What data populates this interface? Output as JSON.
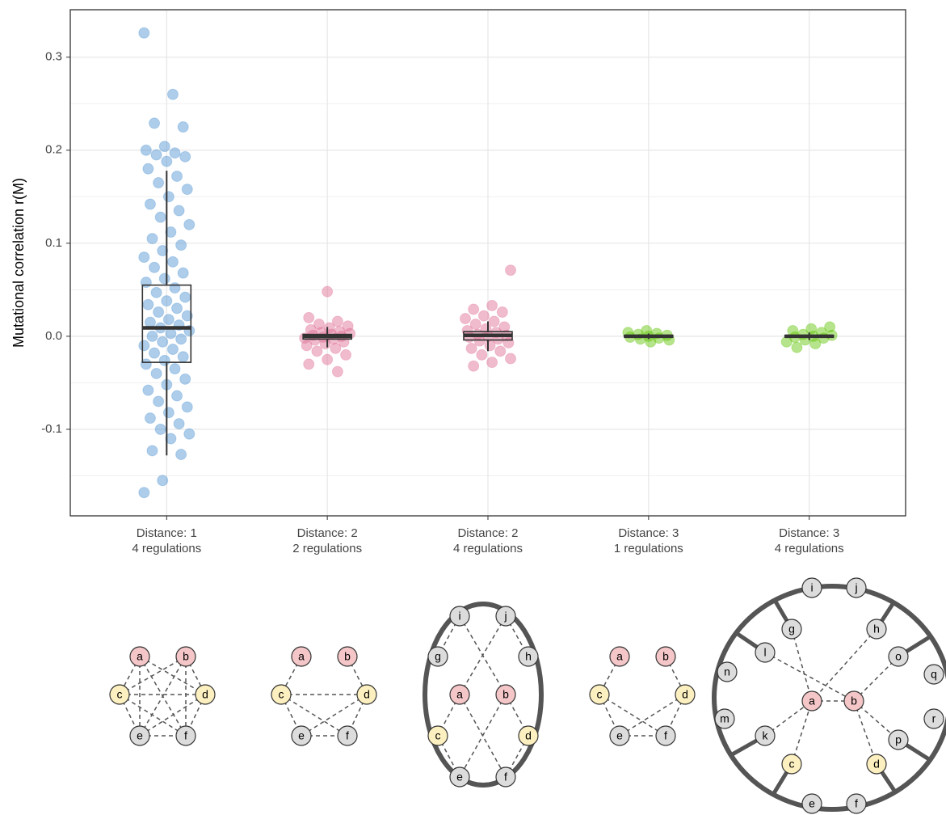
{
  "chart_data": {
    "type": "box",
    "ylabel": "Mutational correlation r(M)",
    "ylim": [
      -0.193,
      0.351
    ],
    "yticks": [
      {
        "value": -0.1,
        "label": "-0.1"
      },
      {
        "value": 0,
        "label": "0.0"
      },
      0.1,
      0.2,
      0.3
    ],
    "grid": true,
    "categories": [
      [
        "Distance: 1",
        "4 regulations"
      ],
      [
        "Distance: 2",
        "2 regulations"
      ],
      [
        "Distance: 2",
        "4 regulations"
      ],
      [
        "Distance: 3",
        "1 regulations"
      ],
      [
        "Distance: 3",
        "4 regulations"
      ]
    ],
    "groups": [
      {
        "color": "#4a90d0",
        "whislo": -0.128,
        "q1": -0.028,
        "med": 0.009,
        "q3": 0.055,
        "whishi": 0.178,
        "points": [
          0.326,
          0.26,
          0.229,
          0.225,
          0.204,
          0.2,
          0.197,
          0.195,
          0.193,
          0.188,
          0.18,
          0.172,
          0.165,
          0.158,
          0.15,
          0.142,
          0.135,
          0.128,
          0.12,
          0.112,
          0.105,
          0.098,
          0.092,
          0.085,
          0.08,
          0.074,
          0.068,
          0.062,
          0.058,
          0.052,
          0.047,
          0.042,
          0.038,
          0.034,
          0.03,
          0.026,
          0.022,
          0.018,
          0.015,
          0.012,
          0.009,
          0.006,
          0.003,
          0.0,
          -0.003,
          -0.006,
          -0.01,
          -0.014,
          -0.018,
          -0.022,
          -0.026,
          -0.03,
          -0.035,
          -0.04,
          -0.046,
          -0.052,
          -0.058,
          -0.064,
          -0.07,
          -0.076,
          -0.082,
          -0.088,
          -0.094,
          -0.1,
          -0.105,
          -0.11,
          -0.123,
          -0.127,
          -0.155,
          -0.168
        ]
      },
      {
        "color": "#de6b91",
        "whislo": -0.012,
        "q1": -0.003,
        "med": 0.0,
        "q3": 0.002,
        "whishi": 0.01,
        "points": [
          0.048,
          0.02,
          0.016,
          0.013,
          0.011,
          0.009,
          0.007,
          0.005,
          0.004,
          0.003,
          0.002,
          0.001,
          0.0,
          -0.001,
          -0.002,
          -0.003,
          -0.004,
          -0.006,
          -0.008,
          -0.01,
          -0.013,
          -0.016,
          -0.02,
          -0.025,
          -0.03,
          -0.038
        ]
      },
      {
        "color": "#de6b91",
        "whislo": -0.016,
        "q1": -0.004,
        "med": 0.001,
        "q3": 0.005,
        "whishi": 0.016,
        "points": [
          0.071,
          0.033,
          0.029,
          0.026,
          0.022,
          0.019,
          0.016,
          0.013,
          0.01,
          0.008,
          0.006,
          0.004,
          0.002,
          0.001,
          0.0,
          -0.001,
          -0.003,
          -0.005,
          -0.007,
          -0.01,
          -0.013,
          -0.016,
          -0.02,
          -0.024,
          -0.028,
          -0.032
        ]
      },
      {
        "color": "#5ec400",
        "whislo": -0.003,
        "q1": -0.001,
        "med": 0.0,
        "q3": 0.001,
        "whishi": 0.003,
        "points": [
          0.006,
          0.004,
          0.003,
          0.002,
          0.001,
          0.0,
          -0.001,
          -0.002,
          -0.003,
          -0.004,
          -0.006
        ]
      },
      {
        "color": "#5ec400",
        "whislo": -0.004,
        "q1": -0.001,
        "med": 0.0,
        "q3": 0.001,
        "whishi": 0.004,
        "points": [
          0.01,
          0.008,
          0.006,
          0.004,
          0.002,
          0.001,
          0.0,
          -0.001,
          -0.002,
          -0.004,
          -0.006,
          -0.008,
          -0.012
        ]
      }
    ]
  },
  "diagrams": [
    {
      "nodes": [
        "a",
        "b",
        "c",
        "d",
        "e",
        "f"
      ]
    },
    {
      "nodes": [
        "a",
        "b",
        "c",
        "d",
        "e",
        "f"
      ]
    },
    {
      "nodes": [
        "i",
        "j",
        "g",
        "h",
        "a",
        "b",
        "c",
        "d",
        "e",
        "f"
      ]
    },
    {
      "nodes": [
        "a",
        "b",
        "c",
        "d",
        "e",
        "f"
      ]
    },
    {
      "nodes": [
        "i",
        "j",
        "g",
        "h",
        "l",
        "o",
        "n",
        "q",
        "m",
        "r",
        "a",
        "b",
        "k",
        "p",
        "c",
        "d",
        "e",
        "f"
      ]
    }
  ]
}
